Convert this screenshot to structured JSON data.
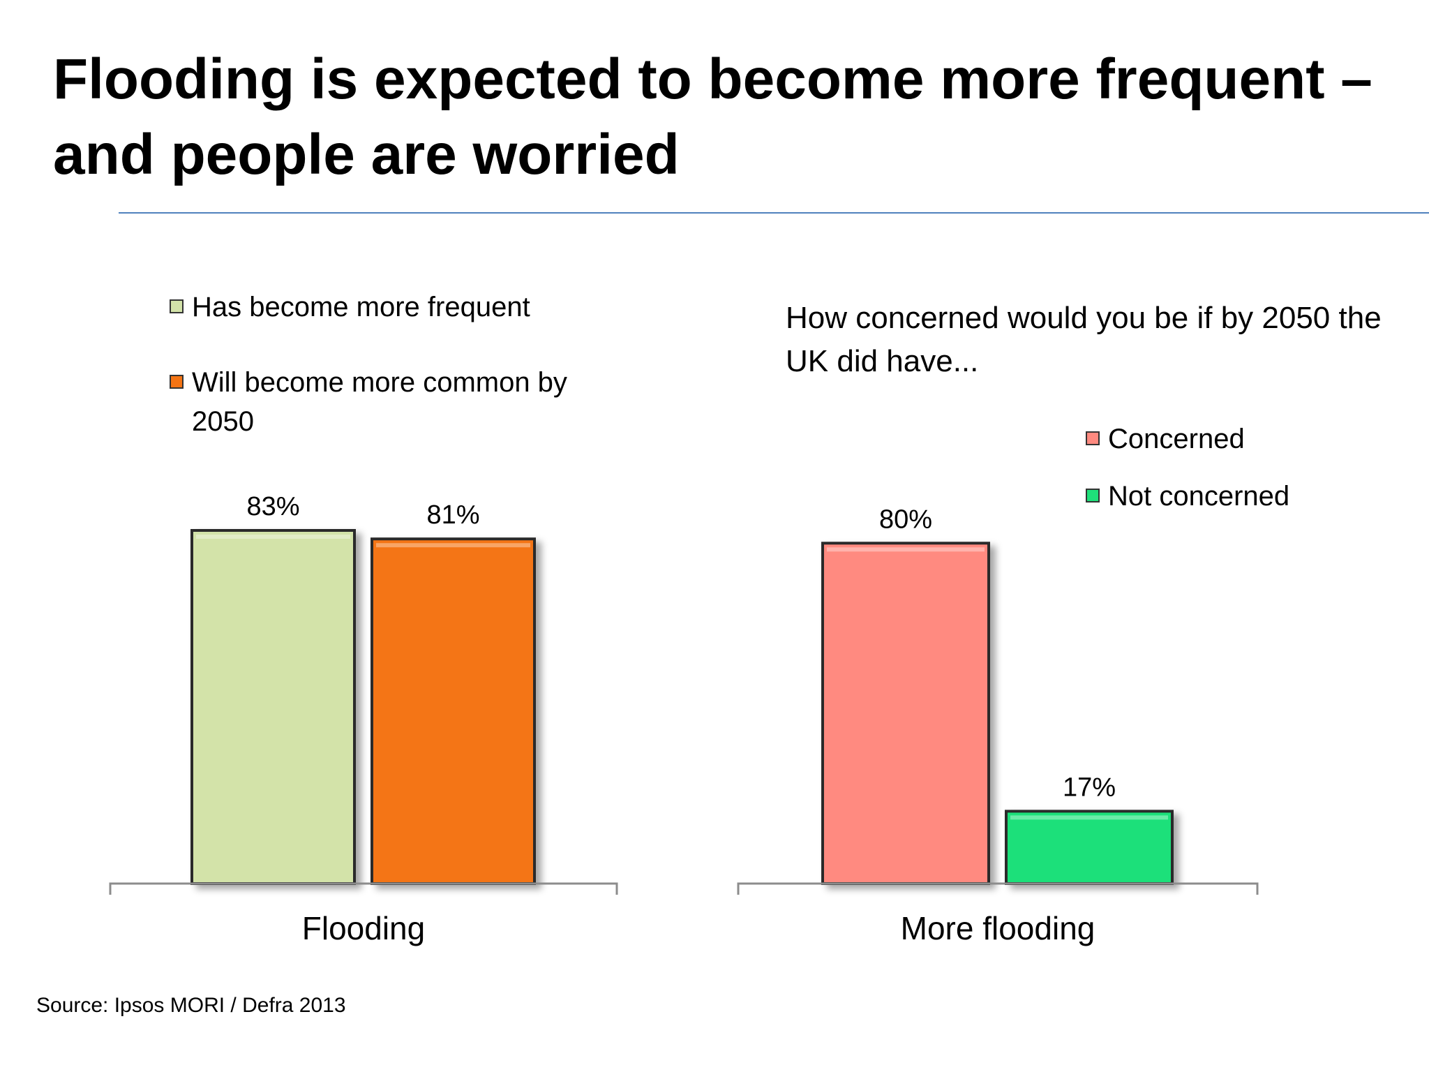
{
  "title": "Flooding is expected to become more frequent – and people are worried",
  "source": "Source: Ipsos MORI / Defra 2013",
  "colors": {
    "accent_rule": "#4f81bd",
    "has_become": "#d3e3a9",
    "will_become": "#f47414",
    "concerned": "#ff8a80",
    "not_concerned": "#1fe07a"
  },
  "chart_data": [
    {
      "type": "bar",
      "title": "",
      "categories": [
        "Flooding"
      ],
      "series": [
        {
          "name": "Has become more frequent",
          "values": [
            83
          ],
          "labels": [
            "83%"
          ]
        },
        {
          "name": "Will become more common by 2050",
          "values": [
            81
          ],
          "labels": [
            "81%"
          ]
        }
      ],
      "ylim": [
        0,
        100
      ],
      "grid": false,
      "legend": "top-left"
    },
    {
      "type": "bar",
      "title": "How concerned would you be if by 2050 the UK did have...",
      "categories": [
        "More flooding"
      ],
      "series": [
        {
          "name": "Concerned",
          "values": [
            80
          ],
          "labels": [
            "80%"
          ]
        },
        {
          "name": "Not concerned",
          "values": [
            17
          ],
          "labels": [
            "17%"
          ]
        }
      ],
      "ylim": [
        0,
        100
      ],
      "grid": false,
      "legend": "top-right"
    }
  ]
}
